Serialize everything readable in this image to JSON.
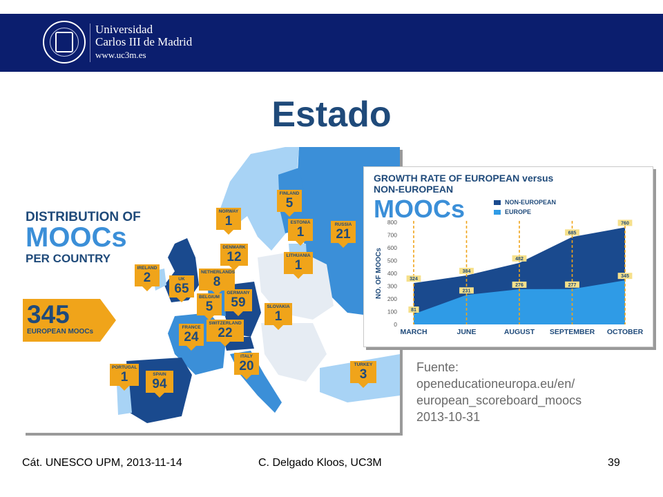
{
  "header": {
    "university_name_line1": "Universidad",
    "university_name_line2": "Carlos III de Madrid",
    "university_url": "www.uc3m.es"
  },
  "slide": {
    "title": "Estado"
  },
  "map_infographic": {
    "title_line1": "DISTRIBUTION OF",
    "title_line2": "MOOCs",
    "title_line3": "PER COUNTRY",
    "total_value": "345",
    "total_label": "EUROPEAN MOOCs",
    "countries": [
      {
        "name": "NORWAY",
        "value": "1"
      },
      {
        "name": "FINLAND",
        "value": "5"
      },
      {
        "name": "ESTONIA",
        "value": "1"
      },
      {
        "name": "RUSSIA",
        "value": "21"
      },
      {
        "name": "DENMARK",
        "value": "12"
      },
      {
        "name": "LITHUANIA",
        "value": "1"
      },
      {
        "name": "IRELAND",
        "value": "2"
      },
      {
        "name": "UK",
        "value": "65"
      },
      {
        "name": "NETHERLANDS",
        "value": "8"
      },
      {
        "name": "BELGIUM",
        "value": "5"
      },
      {
        "name": "GERMANY",
        "value": "59"
      },
      {
        "name": "SLOVAKIA",
        "value": "1"
      },
      {
        "name": "FRANCE",
        "value": "24"
      },
      {
        "name": "SWITZERLAND",
        "value": "22"
      },
      {
        "name": "ITALY",
        "value": "20"
      },
      {
        "name": "PORTUGAL",
        "value": "1"
      },
      {
        "name": "SPAIN",
        "value": "94"
      },
      {
        "name": "TURKEY",
        "value": "3"
      }
    ],
    "colors": {
      "dark": "#1a4a8e",
      "mid": "#3b8fd8",
      "light": "#a8d3f5",
      "none": "#e6ecf3",
      "badge": "#f0a41a"
    }
  },
  "growth_chart": {
    "title_line1": "GROWTH RATE OF EUROPEAN versus",
    "title_line2": "NON-EUROPEAN",
    "title_line3": "MOOCs",
    "legend": [
      {
        "label": "NON-EUROPEAN",
        "color": "#1a4a8e"
      },
      {
        "label": "EUROPE",
        "color": "#2f9be6"
      }
    ]
  },
  "chart_data": {
    "type": "area",
    "title": "GROWTH RATE OF EUROPEAN versus NON-EUROPEAN MOOCs",
    "ylabel": "NO. OF MOOCs",
    "xlabel": "",
    "ylim": [
      0,
      800
    ],
    "yticks": [
      "0",
      "100",
      "200",
      "300",
      "400",
      "500",
      "600",
      "700",
      "800"
    ],
    "categories": [
      "MARCH",
      "JUNE",
      "AUGUST",
      "SEPTEMBER",
      "OCTOBER"
    ],
    "series": [
      {
        "name": "NON-EUROPEAN",
        "values": [
          324,
          384,
          482,
          685,
          760
        ],
        "labels": [
          "324",
          "384",
          "482",
          "685",
          "760"
        ],
        "color": "#1a4a8e"
      },
      {
        "name": "EUROPE",
        "values": [
          81,
          231,
          276,
          277,
          345
        ],
        "labels": [
          "81",
          "231",
          "276",
          "277",
          "345"
        ],
        "color": "#2f9be6"
      }
    ],
    "grid": false
  },
  "source": {
    "line1": "Fuente:",
    "line2": "openeducationeuropa.eu/en/",
    "line3": "european_scoreboard_moocs",
    "line4": "2013-10-31"
  },
  "footer": {
    "left": "Cát. UNESCO UPM, 2013-11-14",
    "center": "C. Delgado Kloos, UC3M",
    "page_number": "39"
  }
}
